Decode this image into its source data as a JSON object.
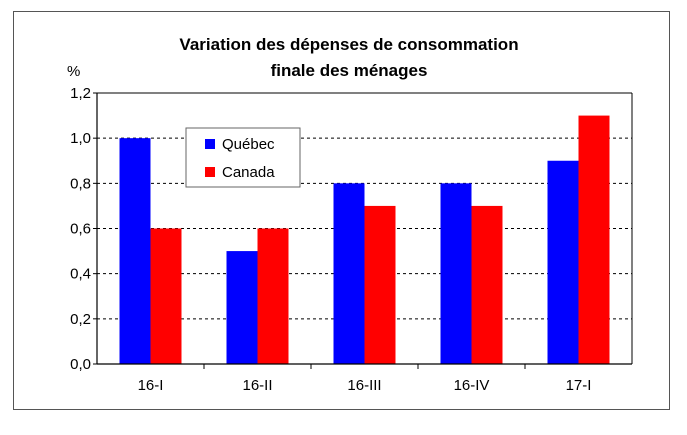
{
  "chart_data": {
    "type": "bar",
    "title": [
      "Variation des dépenses de consommation",
      "finale des ménages"
    ],
    "ylabel": "%",
    "xlabel": "",
    "categories": [
      "16-I",
      "16-II",
      "16-III",
      "16-IV",
      "17-I"
    ],
    "series": [
      {
        "name": "Québec",
        "color": "#0000ff",
        "values": [
          1.0,
          0.5,
          0.8,
          0.8,
          0.9
        ]
      },
      {
        "name": "Canada",
        "color": "#ff0000",
        "values": [
          0.6,
          0.6,
          0.7,
          0.7,
          1.1
        ]
      }
    ],
    "ylim": [
      0,
      1.2
    ],
    "yticks": [
      "0,0",
      "0,2",
      "0,4",
      "0,6",
      "0,8",
      "1,0",
      "1,2"
    ],
    "grid": true,
    "legend_position": "upper-left inside plot"
  }
}
